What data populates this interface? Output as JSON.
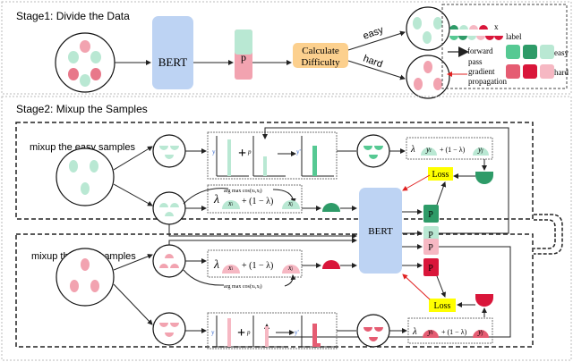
{
  "stage1": {
    "title": "Stage1: Divide the Data",
    "bert": "BERT",
    "p": "p",
    "calc": [
      "Calculate",
      "Difficulty"
    ],
    "easy": "easy",
    "hard": "hard"
  },
  "legend": {
    "x": "x",
    "label": "label",
    "forward": "forward",
    "pass": "pass",
    "gradient": "gradient",
    "propagation": "propagation",
    "easy": "easy",
    "hard": "hard"
  },
  "stage2": {
    "title": "Stage2: Mixup the Samples",
    "bert": "BERT",
    "easy_title": "mixup the easy samples",
    "hard_title": "mixup the hard samples",
    "loss": "Loss",
    "p": "P",
    "argmax": "arg max cos(x",
    "argmax_sub_i": "i",
    "argmax_sub_j": "j",
    "lambda": "λ",
    "one_minus": "+ (1 − λ)",
    "xi": "x",
    "yi": "y",
    "sub_i": "i",
    "sub_j": "j",
    "chart_y": "y",
    "chart_p": "p",
    "chart_yprime": "y'"
  },
  "colors": {
    "green_light": "#b9e8d3",
    "green_mid": "#56c993",
    "green_dark": "#2e9b68",
    "pink_light": "#f6b8c3",
    "pink_mid": "#e55c72",
    "red": "#d9163a",
    "bert": "#bdd3f3",
    "calc": "#fcd08e",
    "loss": "#ffff00"
  }
}
